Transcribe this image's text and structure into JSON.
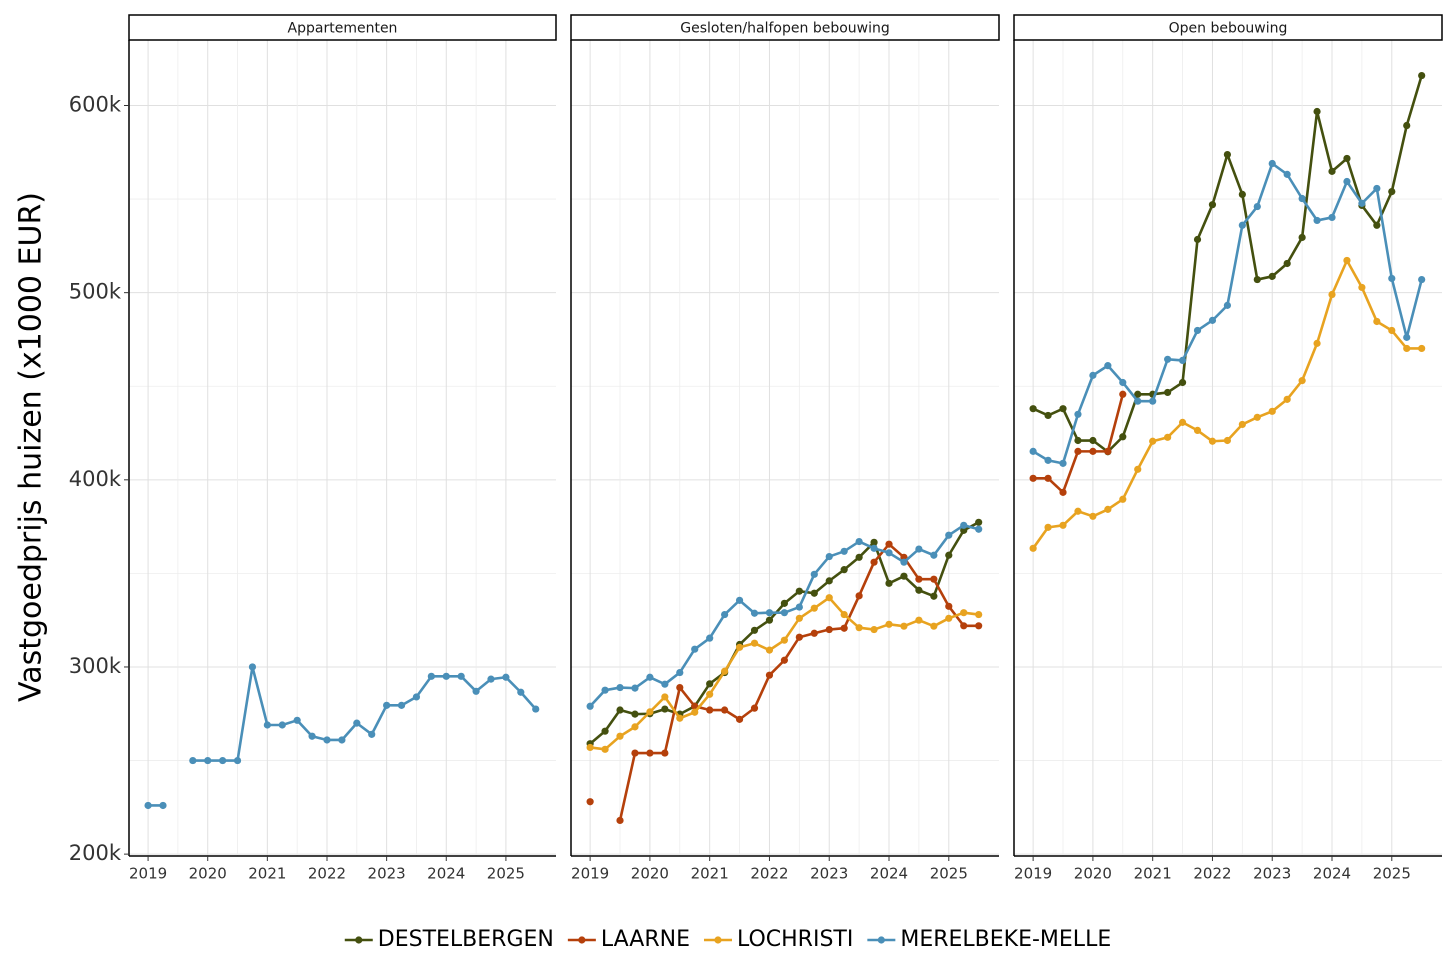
{
  "chart_data": [
    {
      "type": "line",
      "title": "Appartementen",
      "y_label": "Vastgoedprijs huizen (x1000 EUR)",
      "ylim": [
        199,
        635
      ],
      "yticks": [
        {
          "value": 200,
          "label": "200k"
        },
        {
          "value": 300,
          "label": "300k"
        },
        {
          "value": 400,
          "label": "400k"
        },
        {
          "value": 500,
          "label": "500k"
        },
        {
          "value": 600,
          "label": "600k"
        }
      ],
      "xlim": [
        2018.68,
        2025.84
      ],
      "xticks": [
        2019,
        2020,
        2021,
        2022,
        2023,
        2024,
        2025
      ],
      "grid": true,
      "x": [
        2019,
        2019.25,
        2019.5,
        2019.75,
        2020,
        2020.25,
        2020.5,
        2020.75,
        2021,
        2021.25,
        2021.5,
        2021.75,
        2022,
        2022.25,
        2022.5,
        2022.75,
        2023,
        2023.25,
        2023.5,
        2023.75,
        2024,
        2024.25,
        2024.5,
        2024.75,
        2025,
        2025.25,
        2025.5
      ],
      "series": [
        {
          "name": "MERELBEKE-MELLE",
          "color": "#4a8fb8",
          "values": [
            226,
            226,
            null,
            250,
            250,
            250,
            250,
            300,
            269,
            269,
            271.5,
            263,
            261,
            261,
            270,
            264,
            279.5,
            279.5,
            284,
            295,
            295,
            295,
            287,
            293.5,
            294.5,
            286.5,
            277.5
          ]
        }
      ]
    },
    {
      "type": "line",
      "title": "Gesloten/halfopen bebouwing",
      "xlim": [
        2018.68,
        2025.84
      ],
      "xticks": [
        2019,
        2020,
        2021,
        2022,
        2023,
        2024,
        2025
      ],
      "grid": true,
      "x": [
        2019,
        2019.25,
        2019.5,
        2019.75,
        2020,
        2020.25,
        2020.5,
        2020.75,
        2021,
        2021.25,
        2021.5,
        2021.75,
        2022,
        2022.25,
        2022.5,
        2022.75,
        2023,
        2023.25,
        2023.5,
        2023.75,
        2024,
        2024.25,
        2024.5,
        2024.75,
        2025,
        2025.25,
        2025.5
      ],
      "series": [
        {
          "name": "DESTELBERGEN",
          "color": "#44500f",
          "values": [
            259,
            265.7,
            277,
            274.8,
            275,
            277.5,
            274.8,
            279,
            291,
            297,
            312,
            319.6,
            325,
            334,
            340.5,
            339.4,
            346,
            352,
            358.6,
            366.6,
            344.7,
            348.5,
            341,
            337.8,
            359.7,
            373,
            377.3
          ]
        },
        {
          "name": "LAARNE",
          "color": "#b5400b",
          "values": [
            228,
            null,
            218,
            254,
            254,
            254,
            289,
            279,
            277,
            277,
            272,
            278,
            295.6,
            303.6,
            315.9,
            318,
            320,
            320.7,
            338,
            356,
            365.6,
            358.6,
            346.9,
            346.9,
            332.4,
            322,
            322
          ]
        },
        {
          "name": "LOCHRISTI",
          "color": "#e8a320",
          "values": [
            257,
            256,
            263,
            268,
            276,
            284,
            272.6,
            275.8,
            285.4,
            297.7,
            310.5,
            312.7,
            309,
            314.3,
            326,
            331.4,
            337,
            328,
            321,
            320,
            322.8,
            321.8,
            325,
            321.8,
            326,
            329,
            328
          ]
        },
        {
          "name": "MERELBEKE-MELLE",
          "color": "#4a8fb8",
          "values": [
            279,
            287.6,
            289,
            288.7,
            294.5,
            290.8,
            297,
            309.5,
            315.4,
            328,
            335.6,
            328.7,
            329,
            329,
            332,
            349.5,
            359,
            361.8,
            367,
            363.4,
            361,
            356,
            363,
            359.7,
            370.4,
            375.7,
            373.6
          ]
        }
      ]
    },
    {
      "type": "line",
      "title": "Open bebouwing",
      "xlim": [
        2018.68,
        2025.84
      ],
      "xticks": [
        2019,
        2020,
        2021,
        2022,
        2023,
        2024,
        2025
      ],
      "grid": true,
      "x": [
        2019,
        2019.25,
        2019.5,
        2019.75,
        2020,
        2020.25,
        2020.5,
        2020.75,
        2021,
        2021.25,
        2021.5,
        2021.75,
        2022,
        2022.25,
        2022.5,
        2022.75,
        2023,
        2023.25,
        2023.5,
        2023.75,
        2024,
        2024.25,
        2024.5,
        2024.75,
        2025,
        2025.25,
        2025.5
      ],
      "series": [
        {
          "name": "DESTELBERGEN",
          "color": "#44500f",
          "values": [
            438,
            434.4,
            438,
            421,
            421,
            415,
            423,
            445.7,
            445.7,
            446.7,
            452,
            528.4,
            547,
            573.8,
            552.5,
            507,
            508.7,
            515.6,
            529.5,
            596.8,
            564.8,
            571.7,
            546.6,
            536,
            554,
            589.3,
            616
          ]
        },
        {
          "name": "LAARNE",
          "color": "#b5400b",
          "values": [
            400.8,
            400.8,
            393.3,
            415.2,
            415.2,
            415.2,
            445.7,
            null,
            null,
            null,
            null,
            null,
            null,
            null,
            null,
            null,
            null,
            null,
            null,
            null,
            null,
            null,
            null,
            null,
            null,
            null,
            null
          ]
        },
        {
          "name": "LOCHRISTI",
          "color": "#e8a320",
          "values": [
            363.4,
            374.6,
            375.7,
            383.2,
            380.5,
            384.2,
            389.6,
            405.6,
            420.6,
            422.7,
            430.7,
            426.4,
            420.6,
            421,
            429.6,
            433.4,
            436.6,
            443,
            453,
            472.9,
            499,
            517.2,
            502.8,
            484.6,
            479.8,
            470.2,
            470.2
          ]
        },
        {
          "name": "MERELBEKE-MELLE",
          "color": "#4a8fb8",
          "values": [
            415.2,
            410.4,
            408.8,
            435,
            455.8,
            461,
            452,
            442,
            442,
            464.4,
            463.8,
            479.8,
            485.2,
            493.2,
            536,
            546,
            569,
            563.2,
            550.3,
            538.6,
            540.2,
            559.4,
            547.7,
            555.7,
            507.6,
            476.1,
            507
          ]
        }
      ]
    }
  ],
  "legend": "bottom"
}
